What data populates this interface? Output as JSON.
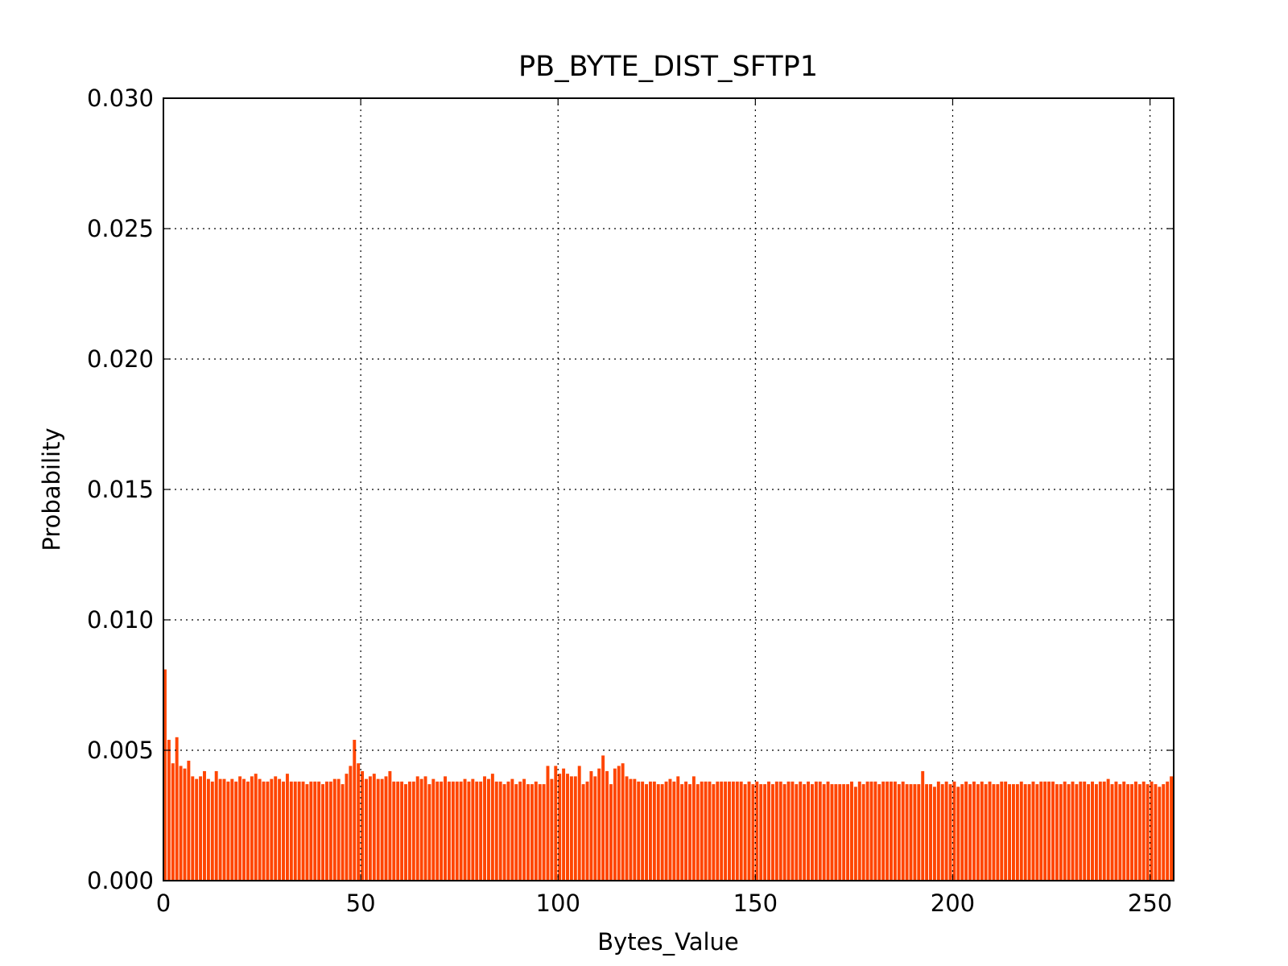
{
  "chart_data": {
    "type": "bar",
    "title": "PB_BYTE_DIST_SFTP1",
    "x_label": "Bytes_Value",
    "y_label": "Probability",
    "color": "#ff4500",
    "grid": true,
    "xlim": [
      0,
      256
    ],
    "xticks": [
      0,
      50,
      100,
      150,
      200,
      250
    ],
    "ylim": [
      0,
      0.03
    ],
    "yticks": [
      {
        "value": 0,
        "label": "0.000"
      },
      {
        "value": 0.005,
        "label": "0.005"
      },
      {
        "value": 0.01,
        "label": "0.010"
      },
      {
        "value": 0.015,
        "label": "0.015"
      },
      {
        "value": 0.02,
        "label": "0.020"
      },
      {
        "value": 0.025,
        "label": "0.025"
      },
      {
        "value": 0.03,
        "label": "0.030"
      }
    ],
    "x": [
      0,
      1,
      2,
      3,
      4,
      5,
      6,
      7,
      8,
      9,
      10,
      11,
      12,
      13,
      14,
      15,
      16,
      17,
      18,
      19,
      20,
      21,
      22,
      23,
      24,
      25,
      26,
      27,
      28,
      29,
      30,
      31,
      32,
      33,
      34,
      35,
      36,
      37,
      38,
      39,
      40,
      41,
      42,
      43,
      44,
      45,
      46,
      47,
      48,
      49,
      50,
      51,
      52,
      53,
      54,
      55,
      56,
      57,
      58,
      59,
      60,
      61,
      62,
      63,
      64,
      65,
      66,
      67,
      68,
      69,
      70,
      71,
      72,
      73,
      74,
      75,
      76,
      77,
      78,
      79,
      80,
      81,
      82,
      83,
      84,
      85,
      86,
      87,
      88,
      89,
      90,
      91,
      92,
      93,
      94,
      95,
      96,
      97,
      98,
      99,
      100,
      101,
      102,
      103,
      104,
      105,
      106,
      107,
      108,
      109,
      110,
      111,
      112,
      113,
      114,
      115,
      116,
      117,
      118,
      119,
      120,
      121,
      122,
      123,
      124,
      125,
      126,
      127,
      128,
      129,
      130,
      131,
      132,
      133,
      134,
      135,
      136,
      137,
      138,
      139,
      140,
      141,
      142,
      143,
      144,
      145,
      146,
      147,
      148,
      149,
      150,
      151,
      152,
      153,
      154,
      155,
      156,
      157,
      158,
      159,
      160,
      161,
      162,
      163,
      164,
      165,
      166,
      167,
      168,
      169,
      170,
      171,
      172,
      173,
      174,
      175,
      176,
      177,
      178,
      179,
      180,
      181,
      182,
      183,
      184,
      185,
      186,
      187,
      188,
      189,
      190,
      191,
      192,
      193,
      194,
      195,
      196,
      197,
      198,
      199,
      200,
      201,
      202,
      203,
      204,
      205,
      206,
      207,
      208,
      209,
      210,
      211,
      212,
      213,
      214,
      215,
      216,
      217,
      218,
      219,
      220,
      221,
      222,
      223,
      224,
      225,
      226,
      227,
      228,
      229,
      230,
      231,
      232,
      233,
      234,
      235,
      236,
      237,
      238,
      239,
      240,
      241,
      242,
      243,
      244,
      245,
      246,
      247,
      248,
      249,
      250,
      251,
      252,
      253,
      254,
      255
    ],
    "values": [
      0.0081,
      0.0054,
      0.0045,
      0.0055,
      0.0044,
      0.0043,
      0.0046,
      0.004,
      0.0039,
      0.004,
      0.0042,
      0.0039,
      0.0038,
      0.0042,
      0.0039,
      0.0039,
      0.0038,
      0.0039,
      0.0038,
      0.004,
      0.0039,
      0.0038,
      0.004,
      0.0041,
      0.0039,
      0.0038,
      0.0038,
      0.0039,
      0.004,
      0.0039,
      0.0038,
      0.0041,
      0.0038,
      0.0038,
      0.0038,
      0.0038,
      0.0037,
      0.0038,
      0.0038,
      0.0038,
      0.0037,
      0.0038,
      0.0038,
      0.0039,
      0.0039,
      0.0037,
      0.0041,
      0.0044,
      0.0054,
      0.0045,
      0.0042,
      0.0039,
      0.004,
      0.0041,
      0.0039,
      0.0039,
      0.004,
      0.0042,
      0.0038,
      0.0038,
      0.0038,
      0.0037,
      0.0038,
      0.0038,
      0.004,
      0.0039,
      0.004,
      0.0037,
      0.0039,
      0.0038,
      0.0038,
      0.004,
      0.0038,
      0.0038,
      0.0038,
      0.0038,
      0.0039,
      0.0038,
      0.0039,
      0.0038,
      0.0038,
      0.004,
      0.0039,
      0.0041,
      0.0038,
      0.0038,
      0.0037,
      0.0038,
      0.0039,
      0.0037,
      0.0038,
      0.0039,
      0.0037,
      0.0037,
      0.0038,
      0.0037,
      0.0037,
      0.0044,
      0.0039,
      0.0044,
      0.0041,
      0.0043,
      0.0041,
      0.004,
      0.004,
      0.0044,
      0.0037,
      0.0038,
      0.0042,
      0.004,
      0.0043,
      0.0048,
      0.0042,
      0.0037,
      0.0043,
      0.0044,
      0.0045,
      0.004,
      0.0039,
      0.0039,
      0.0038,
      0.0038,
      0.0037,
      0.0038,
      0.0038,
      0.0037,
      0.0037,
      0.0038,
      0.0039,
      0.0038,
      0.004,
      0.0037,
      0.0038,
      0.0037,
      0.004,
      0.0037,
      0.0038,
      0.0038,
      0.0038,
      0.0037,
      0.0038,
      0.0038,
      0.0038,
      0.0038,
      0.0038,
      0.0038,
      0.0038,
      0.0037,
      0.0038,
      0.0037,
      0.0038,
      0.0037,
      0.0037,
      0.0038,
      0.0037,
      0.0038,
      0.0038,
      0.0037,
      0.0038,
      0.0038,
      0.0037,
      0.0038,
      0.0037,
      0.0038,
      0.0037,
      0.0038,
      0.0038,
      0.0037,
      0.0038,
      0.0037,
      0.0037,
      0.0037,
      0.0037,
      0.0037,
      0.0038,
      0.0036,
      0.0038,
      0.0037,
      0.0038,
      0.0038,
      0.0038,
      0.0037,
      0.0038,
      0.0038,
      0.0038,
      0.0038,
      0.0037,
      0.0038,
      0.0037,
      0.0037,
      0.0037,
      0.0037,
      0.0042,
      0.0037,
      0.0037,
      0.0036,
      0.0038,
      0.0037,
      0.0038,
      0.0037,
      0.0038,
      0.0036,
      0.0037,
      0.0038,
      0.0037,
      0.0038,
      0.0037,
      0.0038,
      0.0037,
      0.0038,
      0.0037,
      0.0037,
      0.0038,
      0.0038,
      0.0037,
      0.0037,
      0.0037,
      0.0038,
      0.0037,
      0.0037,
      0.0038,
      0.0037,
      0.0038,
      0.0038,
      0.0038,
      0.0038,
      0.0037,
      0.0037,
      0.0038,
      0.0037,
      0.0038,
      0.0037,
      0.0038,
      0.0038,
      0.0037,
      0.0038,
      0.0037,
      0.0038,
      0.0038,
      0.0039,
      0.0037,
      0.0038,
      0.0037,
      0.0038,
      0.0037,
      0.0037,
      0.0038,
      0.0037,
      0.0038,
      0.0037,
      0.0038,
      0.0037,
      0.0036,
      0.0037,
      0.0038,
      0.004
    ]
  }
}
